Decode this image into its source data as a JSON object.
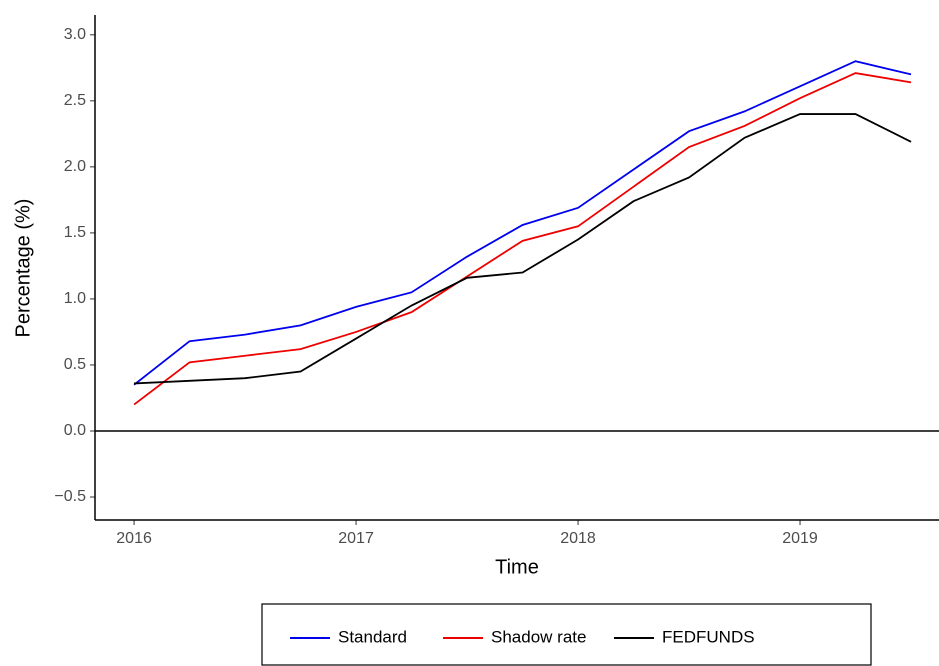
{
  "chart_data": {
    "type": "line",
    "x_label": "Time",
    "y_label": "Percentage (%)",
    "x": [
      2016,
      2016.25,
      2016.5,
      2016.75,
      2017,
      2017.25,
      2017.5,
      2017.75,
      2018,
      2018.25,
      2018.5,
      2018.75,
      2019,
      2019.25,
      2019.5
    ],
    "series": [
      {
        "name": "Standard",
        "color": "#0000ee",
        "values": [
          0.35,
          0.68,
          0.73,
          0.8,
          0.94,
          1.05,
          1.32,
          1.56,
          1.69,
          1.98,
          2.27,
          2.42,
          2.61,
          2.8,
          2.7
        ]
      },
      {
        "name": "Shadow rate",
        "color": "#ee0000",
        "values": [
          0.2,
          0.52,
          0.57,
          0.62,
          0.75,
          0.9,
          1.17,
          1.44,
          1.55,
          1.85,
          2.15,
          2.31,
          2.52,
          2.71,
          2.64
        ]
      },
      {
        "name": "FEDFUNDS",
        "color": "#000000",
        "values": [
          0.36,
          0.38,
          0.4,
          0.45,
          0.7,
          0.95,
          1.16,
          1.2,
          1.45,
          1.74,
          1.92,
          2.22,
          2.4,
          2.4,
          2.19
        ]
      }
    ],
    "xlim": [
      2015.824,
      2019.626
    ],
    "xticks": [
      2016,
      2017,
      2018,
      2019
    ],
    "ylim": [
      -0.674,
      3.15
    ],
    "yticks": [
      {
        "value": -0.5,
        "label": "−0.5"
      },
      {
        "value": 0,
        "label": "0.0"
      },
      {
        "value": 0.5,
        "label": "0.5"
      },
      {
        "value": 1,
        "label": "1.0"
      },
      {
        "value": 1.5,
        "label": "1.5"
      },
      {
        "value": 2,
        "label": "2.0"
      },
      {
        "value": 2.5,
        "label": "2.5"
      },
      {
        "value": 3,
        "label": "3.0"
      }
    ],
    "hline": 0,
    "legend": "bottom",
    "grid": false
  }
}
